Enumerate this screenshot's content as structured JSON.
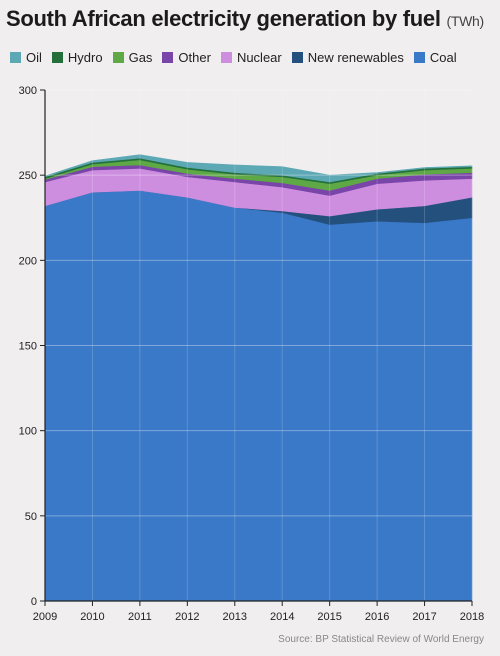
{
  "title": "South African electricity generation by fuel",
  "title_unit": "(TWh)",
  "source": "Source: BP Statistical Review of World Energy",
  "chart_data": {
    "type": "area",
    "stacked": true,
    "x": [
      2009,
      2010,
      2011,
      2012,
      2013,
      2014,
      2015,
      2016,
      2017,
      2018
    ],
    "xlabel": "",
    "ylabel": "",
    "ylim": [
      0,
      300
    ],
    "yticks": [
      0,
      50,
      100,
      150,
      200,
      250,
      300
    ],
    "grid": true,
    "legend_position": "top",
    "series": [
      {
        "name": "Coal",
        "color": "#3a79c8",
        "values": [
          232,
          240,
          241,
          237,
          231,
          228,
          221,
          223,
          222,
          225
        ]
      },
      {
        "name": "New renewables",
        "color": "#24507e",
        "values": [
          0,
          0,
          0,
          0,
          0,
          1,
          5,
          7,
          10,
          12
        ]
      },
      {
        "name": "Nuclear",
        "color": "#cd8ee0",
        "values": [
          14,
          13,
          13,
          12,
          15,
          14,
          12,
          15,
          15,
          11
        ]
      },
      {
        "name": "Other",
        "color": "#7a45a8",
        "values": [
          1.5,
          2,
          2,
          2,
          2,
          2.5,
          3,
          3,
          3.5,
          3.5
        ]
      },
      {
        "name": "Gas",
        "color": "#5ea845",
        "values": [
          0.5,
          1.5,
          3,
          2.5,
          2.5,
          3.5,
          4,
          2,
          2.5,
          2.5
        ]
      },
      {
        "name": "Hydro",
        "color": "#24703c",
        "values": [
          1,
          1,
          1,
          1,
          1,
          1,
          1,
          1,
          1,
          1
        ]
      },
      {
        "name": "Oil",
        "color": "#5ca8b4",
        "values": [
          0.5,
          1,
          2,
          3,
          4.5,
          5,
          4,
          0.5,
          0.5,
          0.5
        ]
      }
    ],
    "legend_order": [
      "Oil",
      "Hydro",
      "Gas",
      "Other",
      "Nuclear",
      "New renewables",
      "Coal"
    ]
  }
}
